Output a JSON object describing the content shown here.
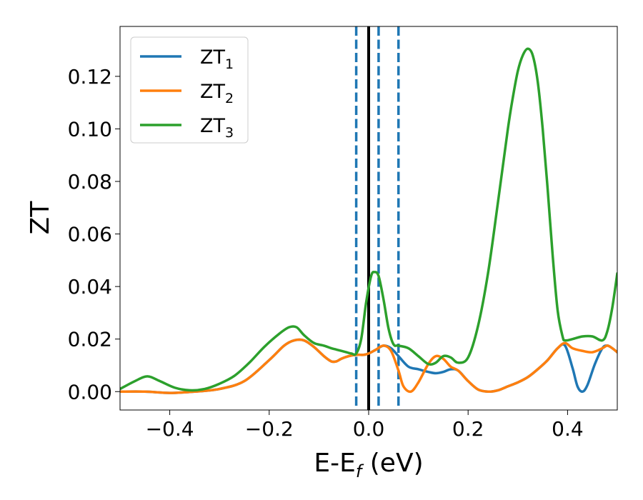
{
  "chart_data": {
    "type": "line",
    "xlabel": {
      "main": "E-E",
      "sub": "f",
      "unit": " (eV)"
    },
    "ylabel": "ZT",
    "xlim": [
      -0.5,
      0.5
    ],
    "ylim": [
      -0.007,
      0.139
    ],
    "xticks": [
      {
        "value": -0.4,
        "label": "−0.4"
      },
      {
        "value": -0.2,
        "label": "−0.2"
      },
      {
        "value": 0.0,
        "label": "0.0"
      },
      {
        "value": 0.2,
        "label": "0.2"
      },
      {
        "value": 0.4,
        "label": "0.4"
      }
    ],
    "yticks": [
      {
        "value": 0.0,
        "label": "0.00"
      },
      {
        "value": 0.02,
        "label": "0.02"
      },
      {
        "value": 0.04,
        "label": "0.04"
      },
      {
        "value": 0.06,
        "label": "0.06"
      },
      {
        "value": 0.08,
        "label": "0.08"
      },
      {
        "value": 0.1,
        "label": "0.10"
      },
      {
        "value": 0.12,
        "label": "0.12"
      }
    ],
    "grid": false,
    "legend_position": "top-left",
    "vertical_lines": [
      {
        "x": 0.0,
        "style": "solid",
        "color": "#000000"
      },
      {
        "x": -0.025,
        "style": "dashed",
        "color": "#1f77b4"
      },
      {
        "x": 0.02,
        "style": "dashed",
        "color": "#1f77b4"
      },
      {
        "x": 0.06,
        "style": "dashed",
        "color": "#1f77b4"
      }
    ],
    "series": [
      {
        "name": "ZT",
        "subscript": "1",
        "color": "#1f77b4",
        "x": [
          -0.5,
          -0.45,
          -0.4,
          -0.35,
          -0.3,
          -0.25,
          -0.2,
          -0.17,
          -0.15,
          -0.13,
          -0.11,
          -0.09,
          -0.075,
          -0.065,
          -0.055,
          -0.04,
          -0.025,
          -0.01,
          0.0,
          0.015,
          0.03,
          0.045,
          0.06,
          0.08,
          0.1,
          0.12,
          0.135,
          0.15,
          0.165,
          0.18,
          0.2,
          0.22,
          0.24,
          0.26,
          0.28,
          0.3,
          0.32,
          0.34,
          0.36,
          0.38,
          0.395,
          0.41,
          0.42,
          0.43,
          0.44,
          0.455,
          0.47,
          0.48,
          0.49,
          0.5
        ],
        "y": [
          0.0,
          0.0,
          -0.0005,
          0.0,
          0.001,
          0.004,
          0.012,
          0.0175,
          0.0195,
          0.0195,
          0.017,
          0.0135,
          0.0115,
          0.0115,
          0.0125,
          0.0135,
          0.014,
          0.014,
          0.0145,
          0.016,
          0.0175,
          0.0165,
          0.0135,
          0.0095,
          0.0085,
          0.0075,
          0.007,
          0.0075,
          0.0085,
          0.008,
          0.004,
          0.0008,
          0.0,
          0.0005,
          0.002,
          0.0035,
          0.0055,
          0.0085,
          0.012,
          0.0165,
          0.0175,
          0.009,
          0.002,
          0.0,
          0.0025,
          0.0105,
          0.0165,
          0.0175,
          0.0165,
          0.015
        ]
      },
      {
        "name": "ZT",
        "subscript": "2",
        "color": "#ff7f0e",
        "x": [
          -0.5,
          -0.45,
          -0.4,
          -0.35,
          -0.3,
          -0.25,
          -0.2,
          -0.17,
          -0.15,
          -0.13,
          -0.11,
          -0.09,
          -0.075,
          -0.065,
          -0.055,
          -0.04,
          -0.025,
          -0.01,
          0.0,
          0.015,
          0.03,
          0.045,
          0.06,
          0.07,
          0.085,
          0.1,
          0.12,
          0.135,
          0.15,
          0.165,
          0.18,
          0.2,
          0.22,
          0.24,
          0.26,
          0.28,
          0.3,
          0.32,
          0.34,
          0.36,
          0.38,
          0.395,
          0.41,
          0.43,
          0.45,
          0.47,
          0.48,
          0.49,
          0.5
        ],
        "y": [
          0.0,
          0.0,
          -0.0005,
          0.0,
          0.001,
          0.004,
          0.012,
          0.0175,
          0.0195,
          0.0195,
          0.017,
          0.0135,
          0.0115,
          0.0115,
          0.0125,
          0.0135,
          0.014,
          0.014,
          0.0145,
          0.016,
          0.0175,
          0.0155,
          0.008,
          0.002,
          0.0,
          0.0035,
          0.0105,
          0.0135,
          0.0125,
          0.0095,
          0.008,
          0.004,
          0.0008,
          0.0,
          0.0005,
          0.002,
          0.0035,
          0.0055,
          0.0085,
          0.012,
          0.0165,
          0.0185,
          0.0165,
          0.0155,
          0.015,
          0.0165,
          0.0175,
          0.0165,
          0.015
        ]
      },
      {
        "name": "ZT",
        "subscript": "3",
        "color": "#2ca02c",
        "x": [
          -0.5,
          -0.47,
          -0.445,
          -0.42,
          -0.39,
          -0.36,
          -0.33,
          -0.3,
          -0.27,
          -0.24,
          -0.21,
          -0.18,
          -0.16,
          -0.145,
          -0.13,
          -0.11,
          -0.09,
          -0.075,
          -0.065,
          -0.055,
          -0.045,
          -0.035,
          -0.025,
          -0.015,
          -0.005,
          0.005,
          0.012,
          0.02,
          0.03,
          0.04,
          0.05,
          0.06,
          0.08,
          0.1,
          0.12,
          0.135,
          0.15,
          0.165,
          0.18,
          0.2,
          0.22,
          0.24,
          0.26,
          0.28,
          0.29,
          0.3,
          0.31,
          0.32,
          0.33,
          0.34,
          0.35,
          0.36,
          0.37,
          0.38,
          0.39,
          0.395,
          0.41,
          0.43,
          0.45,
          0.47,
          0.48,
          0.49,
          0.5
        ],
        "y": [
          0.001,
          0.004,
          0.0058,
          0.004,
          0.0015,
          0.0005,
          0.001,
          0.003,
          0.006,
          0.011,
          0.017,
          0.022,
          0.0245,
          0.0245,
          0.0215,
          0.0185,
          0.0175,
          0.0165,
          0.016,
          0.0155,
          0.015,
          0.0145,
          0.0145,
          0.02,
          0.034,
          0.044,
          0.0455,
          0.044,
          0.035,
          0.024,
          0.018,
          0.0175,
          0.0165,
          0.0135,
          0.0105,
          0.011,
          0.0135,
          0.013,
          0.011,
          0.013,
          0.025,
          0.045,
          0.072,
          0.1,
          0.112,
          0.122,
          0.128,
          0.1305,
          0.128,
          0.118,
          0.1,
          0.077,
          0.052,
          0.031,
          0.021,
          0.0195,
          0.02,
          0.021,
          0.021,
          0.0195,
          0.023,
          0.032,
          0.045
        ]
      }
    ]
  }
}
